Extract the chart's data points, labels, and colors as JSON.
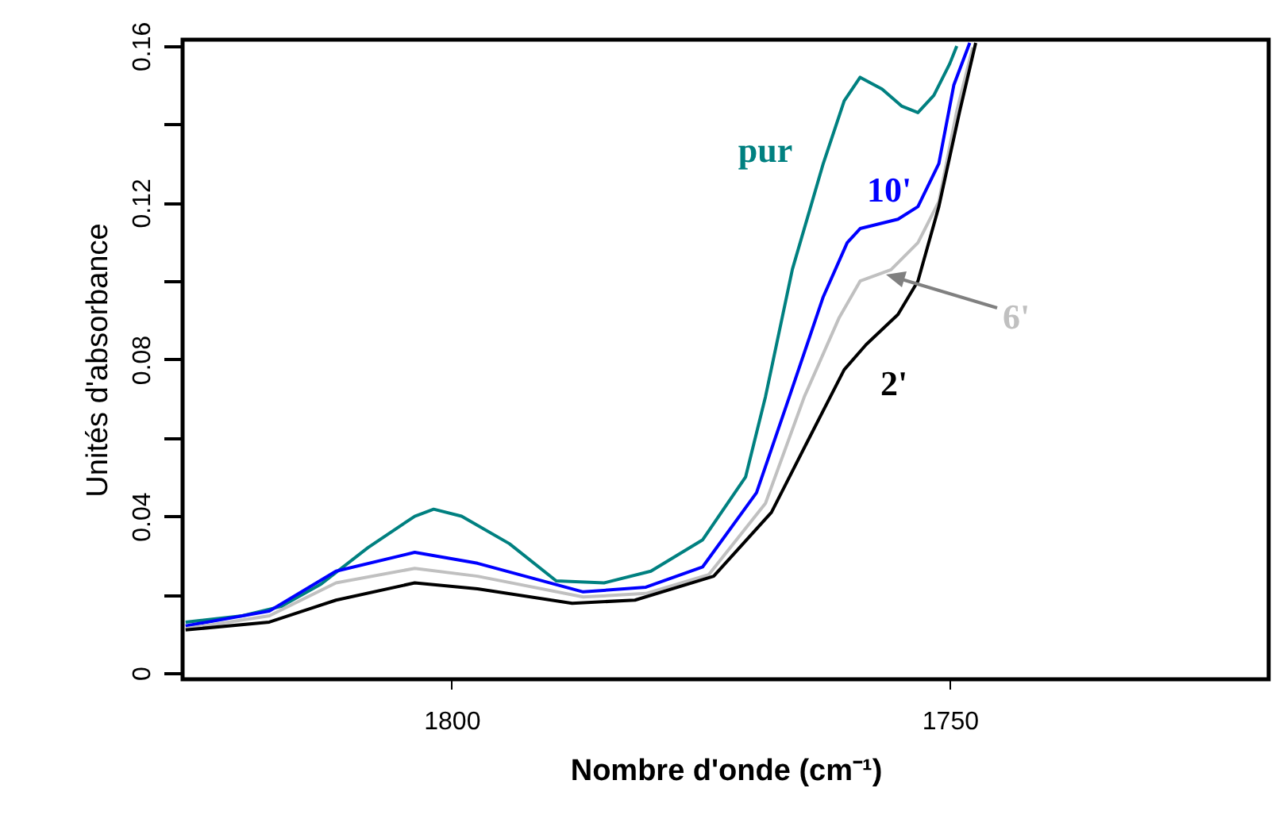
{
  "chart_data": {
    "type": "line",
    "xlabel": "Nombre d'onde (cm⁻¹)",
    "ylabel": "Unités d'absorbance",
    "xlim": [
      1827,
      1718
    ],
    "ylim": [
      -0.0016,
      0.1616
    ],
    "xticks": [
      1800,
      1750
    ],
    "yticks": [
      0,
      {
        "value": 0.02,
        "label": null
      },
      0.04,
      {
        "value": 0.06,
        "label": null
      },
      0.08,
      {
        "value": 0.1,
        "label": null
      },
      0.12,
      {
        "value": 0.14,
        "label": null
      },
      0.16
    ],
    "line_style": "solid",
    "series": [
      {
        "name": "pur",
        "color": "#008080",
        "x": [
          1826.7,
          1821,
          1817.1,
          1813.1,
          1808.4,
          1803.7,
          1801.8,
          1799,
          1794.2,
          1789.5,
          1784.7,
          1780,
          1774.8,
          1770.5,
          1768.5,
          1765.8,
          1762.7,
          1760.6,
          1759,
          1756.8,
          1754.8,
          1753.2,
          1751.6,
          1750,
          1749.3
        ],
        "values": [
          0.013,
          0.0146,
          0.017,
          0.0227,
          0.032,
          0.04,
          0.0418,
          0.04,
          0.033,
          0.0235,
          0.023,
          0.026,
          0.034,
          0.05,
          0.0705,
          0.103,
          0.13,
          0.146,
          0.152,
          0.149,
          0.1446,
          0.143,
          0.1474,
          0.1555,
          0.16
        ]
      },
      {
        "name": "10'",
        "color": "#0000ff",
        "x": [
          1826.7,
          1818.3,
          1811.6,
          1803.7,
          1797.4,
          1786.8,
          1780.5,
          1774.8,
          1769.4,
          1766.1,
          1762.7,
          1760.3,
          1759,
          1755.2,
          1753.2,
          1751.1,
          1749.6,
          1748
        ],
        "values": [
          0.012,
          0.0158,
          0.026,
          0.0308,
          0.028,
          0.0207,
          0.0219,
          0.0271,
          0.046,
          0.0705,
          0.096,
          0.1098,
          0.1134,
          0.1158,
          0.119,
          0.13,
          0.15,
          0.1608
        ]
      },
      {
        "name": "6'",
        "color": "#c0c0c0",
        "x": [
          1826.7,
          1818.3,
          1811.6,
          1803.7,
          1797.4,
          1786.8,
          1780.5,
          1774.2,
          1768.5,
          1764.6,
          1761.1,
          1759,
          1755.9,
          1753.2,
          1751.1,
          1749.3,
          1747.7
        ],
        "values": [
          0.0113,
          0.0146,
          0.023,
          0.0267,
          0.0247,
          0.0194,
          0.0203,
          0.0251,
          0.0433,
          0.0705,
          0.0907,
          0.1,
          0.1029,
          0.1098,
          0.1203,
          0.1434,
          0.1596
        ]
      },
      {
        "name": "2'",
        "color": "#000000",
        "x": [
          1826.7,
          1818.3,
          1811.6,
          1803.7,
          1797.4,
          1787.9,
          1781.6,
          1773.7,
          1767.9,
          1764.2,
          1760.6,
          1758.4,
          1755.2,
          1753.2,
          1751.1,
          1749.0,
          1747.4
        ],
        "values": [
          0.011,
          0.013,
          0.0186,
          0.023,
          0.0215,
          0.0178,
          0.0186,
          0.0247,
          0.041,
          0.0595,
          0.0774,
          0.0838,
          0.0915,
          0.1,
          0.119,
          0.1434,
          0.1608
        ]
      }
    ]
  }
}
